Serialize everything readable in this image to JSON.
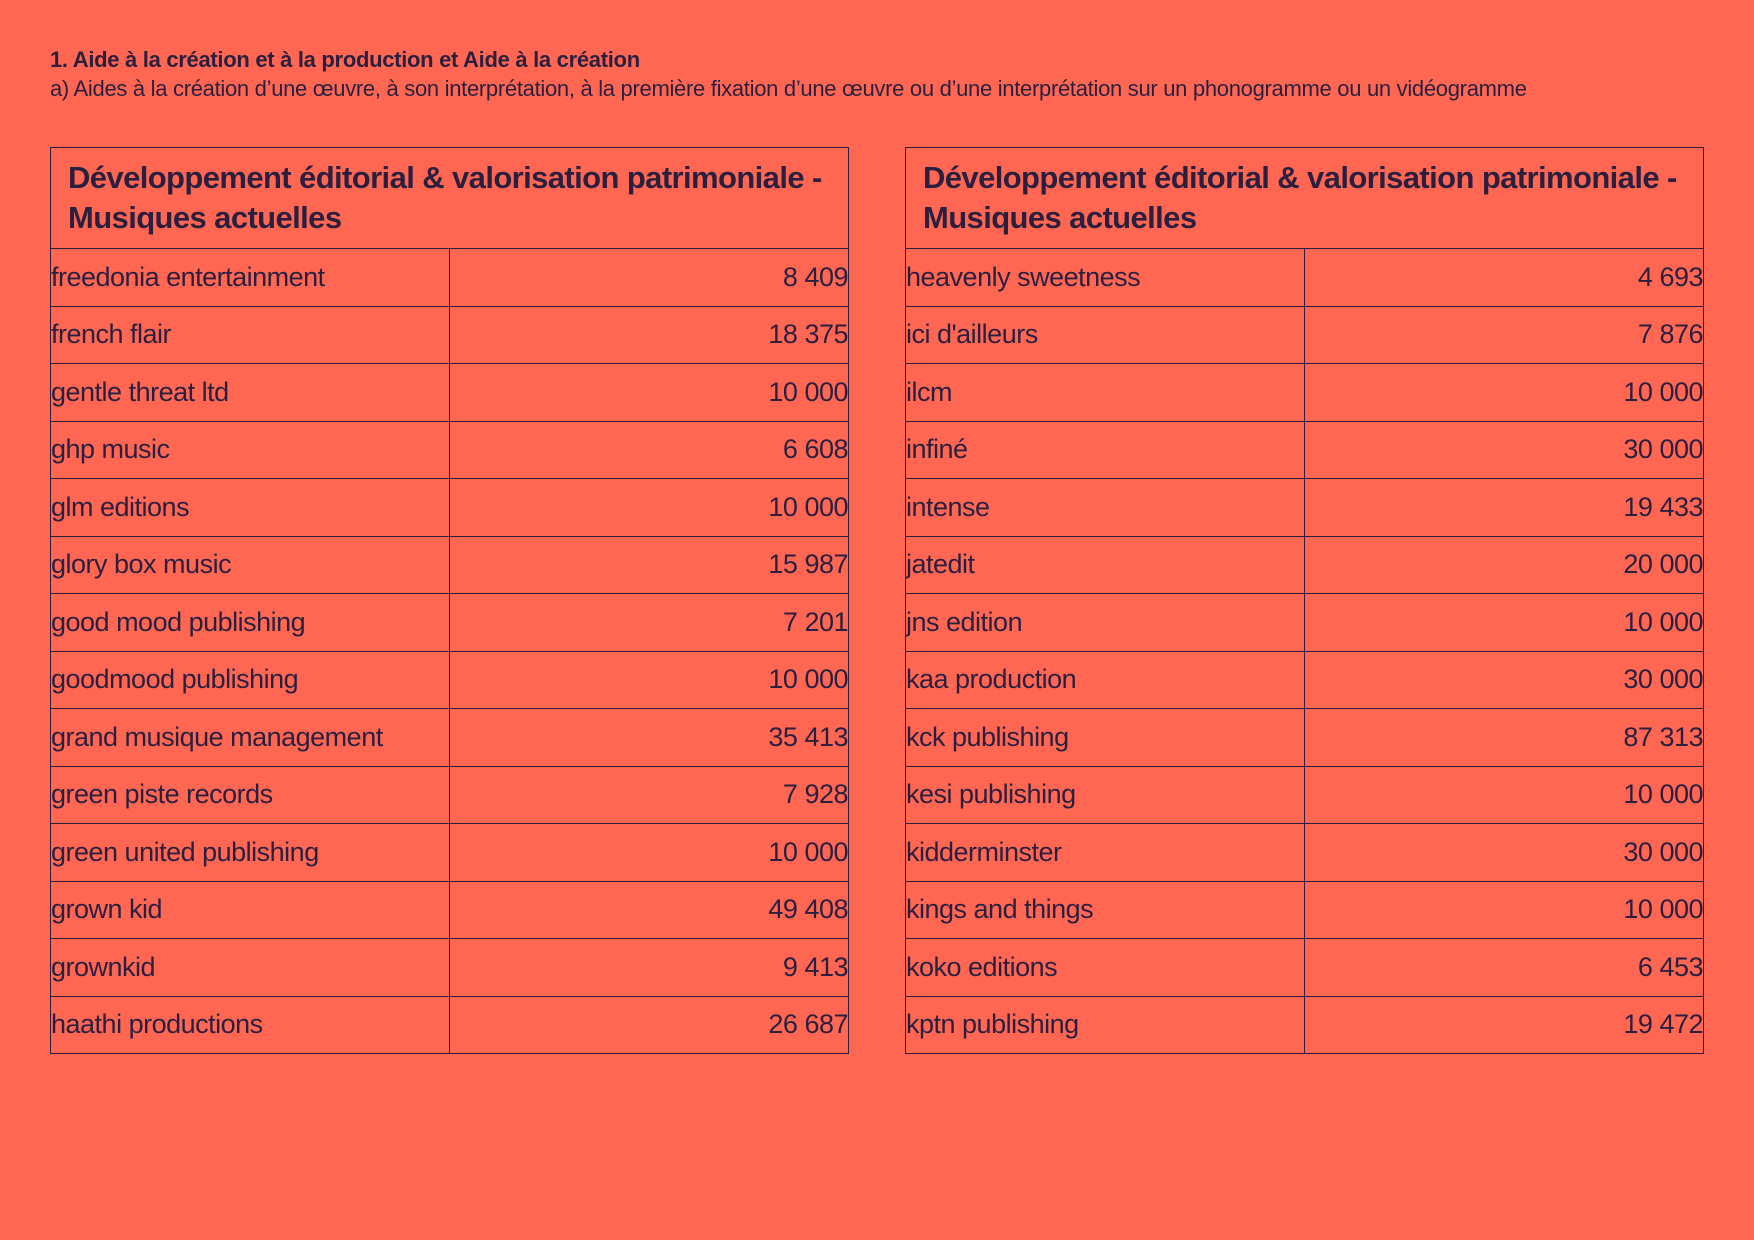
{
  "heading": {
    "title": "1. Aide à la création et à la production et Aide à la création",
    "subtitle": "a) Aides à la création d’une œuvre, à son interprétation, à la première fixation d’une œuvre ou d’une interprétation sur un phonogramme ou un vidéogramme"
  },
  "left_table": {
    "header": "Développement éditorial & valorisation patrimoniale - Musiques actuelles",
    "rows": [
      {
        "name": "freedonia entertainment",
        "amount": "8 409"
      },
      {
        "name": "french flair",
        "amount": "18 375"
      },
      {
        "name": "gentle threat ltd",
        "amount": "10 000"
      },
      {
        "name": "ghp music",
        "amount": "6 608"
      },
      {
        "name": "glm editions",
        "amount": "10 000"
      },
      {
        "name": "glory box music",
        "amount": "15 987"
      },
      {
        "name": "good mood publishing",
        "amount": "7 201"
      },
      {
        "name": "goodmood publishing",
        "amount": "10 000"
      },
      {
        "name": "grand musique management",
        "amount": "35 413"
      },
      {
        "name": "green piste records",
        "amount": "7 928"
      },
      {
        "name": "green united publishing",
        "amount": "10 000"
      },
      {
        "name": "grown kid",
        "amount": "49 408"
      },
      {
        "name": "grownkid",
        "amount": "9 413"
      },
      {
        "name": "haathi productions",
        "amount": "26 687"
      }
    ]
  },
  "right_table": {
    "header": "Développement éditorial & valorisation patrimoniale - Musiques actuelles",
    "rows": [
      {
        "name": "heavenly sweetness",
        "amount": "4 693"
      },
      {
        "name": "ici d'ailleurs",
        "amount": "7 876"
      },
      {
        "name": "ilcm",
        "amount": "10 000"
      },
      {
        "name": "infiné",
        "amount": "30 000"
      },
      {
        "name": "intense",
        "amount": "19 433"
      },
      {
        "name": "jatedit",
        "amount": "20 000"
      },
      {
        "name": "jns edition",
        "amount": "10 000"
      },
      {
        "name": "kaa production",
        "amount": "30 000"
      },
      {
        "name": "kck publishing",
        "amount": "87 313"
      },
      {
        "name": "kesi publishing",
        "amount": "10 000"
      },
      {
        "name": "kidderminster",
        "amount": "30 000"
      },
      {
        "name": "kings and things",
        "amount": "10 000"
      },
      {
        "name": "koko editions",
        "amount": "6 453"
      },
      {
        "name": "kptn publishing",
        "amount": "19 472"
      }
    ]
  }
}
